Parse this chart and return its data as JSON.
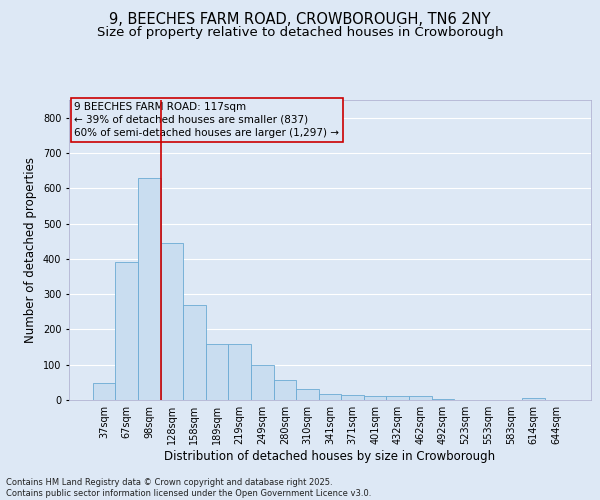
{
  "title_line1": "9, BEECHES FARM ROAD, CROWBOROUGH, TN6 2NY",
  "title_line2": "Size of property relative to detached houses in Crowborough",
  "xlabel": "Distribution of detached houses by size in Crowborough",
  "ylabel": "Number of detached properties",
  "categories": [
    "37sqm",
    "67sqm",
    "98sqm",
    "128sqm",
    "158sqm",
    "189sqm",
    "219sqm",
    "249sqm",
    "280sqm",
    "310sqm",
    "341sqm",
    "371sqm",
    "401sqm",
    "432sqm",
    "462sqm",
    "492sqm",
    "523sqm",
    "553sqm",
    "583sqm",
    "614sqm",
    "644sqm"
  ],
  "values": [
    47,
    390,
    630,
    445,
    270,
    160,
    160,
    98,
    57,
    30,
    17,
    13,
    10,
    10,
    10,
    2,
    0,
    0,
    0,
    5,
    0
  ],
  "bar_color": "#c9ddf0",
  "bar_edge_color": "#6aaad4",
  "background_color": "#dde8f5",
  "grid_color": "#ffffff",
  "vline_x": 2.5,
  "vline_color": "#cc0000",
  "annotation_text_line1": "9 BEECHES FARM ROAD: 117sqm",
  "annotation_text_line2": "← 39% of detached houses are smaller (837)",
  "annotation_text_line3": "60% of semi-detached houses are larger (1,297) →",
  "ylim": [
    0,
    850
  ],
  "yticks": [
    0,
    100,
    200,
    300,
    400,
    500,
    600,
    700,
    800
  ],
  "footer_line1": "Contains HM Land Registry data © Crown copyright and database right 2025.",
  "footer_line2": "Contains public sector information licensed under the Open Government Licence v3.0.",
  "title_fontsize": 10.5,
  "subtitle_fontsize": 9.5,
  "axis_label_fontsize": 8.5,
  "tick_fontsize": 7,
  "annotation_fontsize": 7.5,
  "footer_fontsize": 6
}
